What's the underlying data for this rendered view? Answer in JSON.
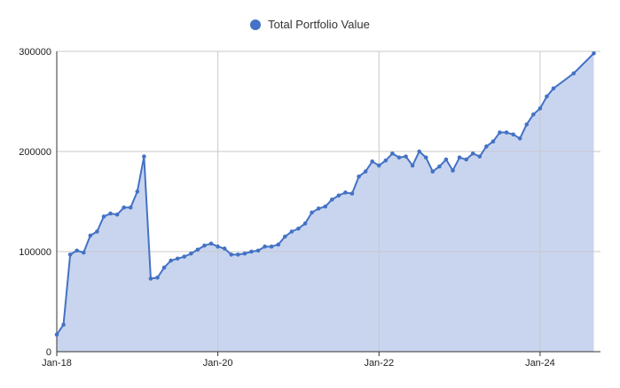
{
  "colors": {
    "series": "#4472c4",
    "fill": "#c9d5ef",
    "grid": "#c8c8c8",
    "axis": "#333333"
  },
  "chart_data": {
    "type": "area",
    "legend_position": "top",
    "grid": true,
    "x_tick_labels": [
      "Jan-18",
      "Jan-20",
      "Jan-22",
      "Jan-24"
    ],
    "x_range": [
      "2018-01",
      "2024-10"
    ],
    "y_tick_labels": [
      "0",
      "100000",
      "200000",
      "300000"
    ],
    "ylim": [
      0,
      300000
    ],
    "series": [
      {
        "name": "Total Portfolio Value",
        "points": [
          [
            "2018-01",
            17000
          ],
          [
            "2018-02",
            27000
          ],
          [
            "2018-03",
            97000
          ],
          [
            "2018-04",
            101000
          ],
          [
            "2018-05",
            99000
          ],
          [
            "2018-06",
            116000
          ],
          [
            "2018-07",
            120000
          ],
          [
            "2018-08",
            135000
          ],
          [
            "2018-09",
            138000
          ],
          [
            "2018-10",
            137000
          ],
          [
            "2018-11",
            144000
          ],
          [
            "2018-12",
            144000
          ],
          [
            "2019-01",
            160000
          ],
          [
            "2019-02",
            195000
          ],
          [
            "2019-03",
            73000
          ],
          [
            "2019-04",
            74000
          ],
          [
            "2019-05",
            84000
          ],
          [
            "2019-06",
            91000
          ],
          [
            "2019-07",
            93000
          ],
          [
            "2019-08",
            95000
          ],
          [
            "2019-09",
            98000
          ],
          [
            "2019-10",
            102000
          ],
          [
            "2019-11",
            106000
          ],
          [
            "2019-12",
            108000
          ],
          [
            "2020-01",
            105000
          ],
          [
            "2020-02",
            103000
          ],
          [
            "2020-03",
            97000
          ],
          [
            "2020-04",
            97000
          ],
          [
            "2020-05",
            98000
          ],
          [
            "2020-06",
            100000
          ],
          [
            "2020-07",
            101000
          ],
          [
            "2020-08",
            105000
          ],
          [
            "2020-09",
            105000
          ],
          [
            "2020-10",
            107000
          ],
          [
            "2020-11",
            115000
          ],
          [
            "2020-12",
            120000
          ],
          [
            "2021-01",
            123000
          ],
          [
            "2021-02",
            128000
          ],
          [
            "2021-03",
            139000
          ],
          [
            "2021-04",
            143000
          ],
          [
            "2021-05",
            145000
          ],
          [
            "2021-06",
            152000
          ],
          [
            "2021-07",
            156000
          ],
          [
            "2021-08",
            159000
          ],
          [
            "2021-09",
            158000
          ],
          [
            "2021-10",
            175000
          ],
          [
            "2021-11",
            180000
          ],
          [
            "2021-12",
            190000
          ],
          [
            "2022-01",
            186000
          ],
          [
            "2022-02",
            191000
          ],
          [
            "2022-03",
            198000
          ],
          [
            "2022-04",
            194000
          ],
          [
            "2022-05",
            195000
          ],
          [
            "2022-06",
            186000
          ],
          [
            "2022-07",
            200000
          ],
          [
            "2022-08",
            194000
          ],
          [
            "2022-09",
            180000
          ],
          [
            "2022-10",
            185000
          ],
          [
            "2022-11",
            192000
          ],
          [
            "2022-12",
            181000
          ],
          [
            "2023-01",
            194000
          ],
          [
            "2023-02",
            192000
          ],
          [
            "2023-03",
            198000
          ],
          [
            "2023-04",
            195000
          ],
          [
            "2023-05",
            205000
          ],
          [
            "2023-06",
            210000
          ],
          [
            "2023-07",
            219000
          ],
          [
            "2023-08",
            219000
          ],
          [
            "2023-09",
            217000
          ],
          [
            "2023-10",
            213000
          ],
          [
            "2023-11",
            227000
          ],
          [
            "2023-12",
            237000
          ],
          [
            "2024-01",
            243000
          ],
          [
            "2024-02",
            255000
          ],
          [
            "2024-03",
            263000
          ],
          [
            "2024-06",
            278000
          ],
          [
            "2024-09",
            298000
          ]
        ]
      }
    ]
  }
}
